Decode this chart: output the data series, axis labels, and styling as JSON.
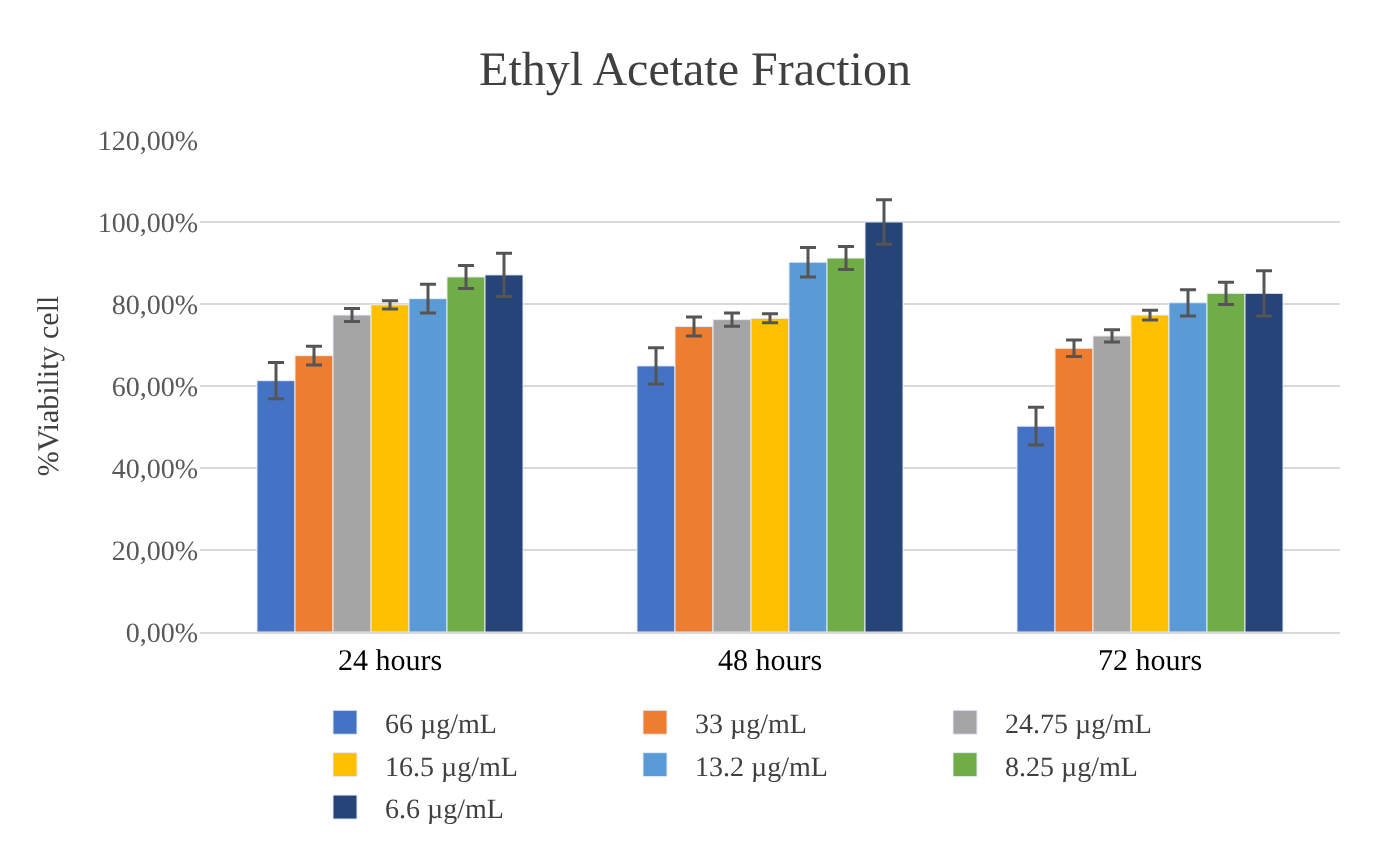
{
  "chart_data": {
    "type": "bar",
    "title": "Ethyl Acetate Fraction",
    "ylabel": "%Viability cell",
    "categories": [
      "24 hours",
      "48 hours",
      "72 hours"
    ],
    "series": [
      {
        "name": "66 µg/mL",
        "color": "#4472c4",
        "values": [
          61.3,
          64.9,
          50.2
        ],
        "errors": [
          4.4,
          4.4,
          4.6
        ]
      },
      {
        "name": "33 µg/mL",
        "color": "#ed7d31",
        "values": [
          67.4,
          74.5,
          69.2
        ],
        "errors": [
          2.3,
          2.3,
          2.0
        ]
      },
      {
        "name": "24.75 µg/mL",
        "color": "#a5a5a5",
        "values": [
          77.3,
          76.2,
          72.2
        ],
        "errors": [
          1.6,
          1.6,
          1.5
        ]
      },
      {
        "name": "16.5 µg/mL",
        "color": "#ffc000",
        "values": [
          79.8,
          76.5,
          77.3
        ],
        "errors": [
          1.0,
          1.1,
          1.2
        ]
      },
      {
        "name": "13.2 µg/mL",
        "color": "#5b9bd5",
        "values": [
          81.3,
          90.2,
          80.3
        ],
        "errors": [
          3.5,
          3.6,
          3.2
        ]
      },
      {
        "name": "8.25 µg/mL",
        "color": "#70ad47",
        "values": [
          86.6,
          91.2,
          82.6
        ],
        "errors": [
          2.8,
          2.8,
          2.7
        ]
      },
      {
        "name": "6.6 µg/mL",
        "color": "#264478",
        "values": [
          87.1,
          100.0,
          82.6
        ],
        "errors": [
          5.3,
          5.4,
          5.5
        ]
      }
    ],
    "ylim": [
      0,
      120
    ],
    "yticks": [
      {
        "value": 0,
        "label": "0,00%"
      },
      {
        "value": 20,
        "label": "20,00%"
      },
      {
        "value": 40,
        "label": "40,00%"
      },
      {
        "value": 60,
        "label": "60,00%"
      },
      {
        "value": 80,
        "label": "80,00%"
      },
      {
        "value": 100,
        "label": "100,00%"
      },
      {
        "value": 120,
        "label": "120,00%"
      }
    ],
    "grid": "y",
    "legend": "bottom"
  }
}
